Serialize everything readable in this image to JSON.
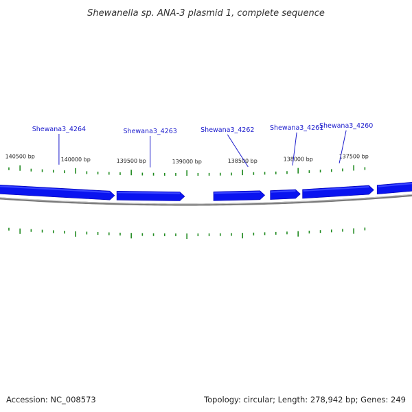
{
  "title": "Shewanella sp. ANA-3 plasmid 1, complete sequence",
  "accession": "Accession: NC_008573",
  "summary": "Topology: circular; Length: 278,942 bp; Genes: 249",
  "colors": {
    "gene_fill": "#0a14f0",
    "gene_highlight": "#3a46ff",
    "tick": "#1f8a1f",
    "backbone": "#7a7a7a",
    "gene_label": "#1a1acc",
    "text": "#222222"
  },
  "chart_data": {
    "type": "circular-genome-map",
    "visible_window_bp": [
      137350,
      140600
    ],
    "direction": "coordinates decrease left to right",
    "scale_labels": [
      {
        "bp": 140500,
        "text": "140500 bp"
      },
      {
        "bp": 140000,
        "text": "140000 bp"
      },
      {
        "bp": 139500,
        "text": "139500 bp"
      },
      {
        "bp": 139000,
        "text": "139000 bp"
      },
      {
        "bp": 138500,
        "text": "138500 bp"
      },
      {
        "bp": 138000,
        "text": "138000 bp"
      },
      {
        "bp": 137500,
        "text": "137500 bp"
      }
    ],
    "genes": [
      {
        "name": "Shewana3_4264",
        "strand": "-",
        "start": 139650,
        "end": 141000,
        "label_bp": 140150
      },
      {
        "name": "Shewana3_4263",
        "strand": "-",
        "start": 139020,
        "end": 139630,
        "label_bp": 139330
      },
      {
        "name": "Shewana3_4262",
        "strand": "-",
        "start": 138300,
        "end": 138760,
        "label_bp": 138450
      },
      {
        "name": "Shewana3_4261",
        "strand": "-",
        "start": 137980,
        "end": 138250,
        "label_bp": 138050
      },
      {
        "name": "Shewana3_4260",
        "strand": "-",
        "start": 137320,
        "end": 137960,
        "label_bp": 137630
      },
      {
        "name": "",
        "strand": "-",
        "start": 136800,
        "end": 137290,
        "label_bp": null
      }
    ]
  }
}
